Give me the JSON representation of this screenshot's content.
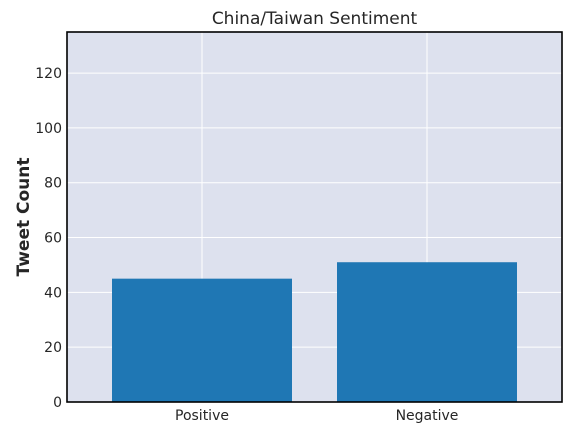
{
  "chart_data": {
    "type": "bar",
    "title": "China/Taiwan Sentiment",
    "xlabel": "",
    "ylabel": "Tweet Count",
    "categories": [
      "Positive",
      "Negative"
    ],
    "values": [
      45,
      51
    ],
    "ylim": [
      0,
      135
    ],
    "yticks": [
      0,
      20,
      40,
      60,
      80,
      100,
      120
    ],
    "grid": true,
    "legend": "none",
    "colors": {
      "bar": "#1f77b4",
      "plot_background": "#dde1ee",
      "grid": "#ffffff",
      "frame": "#000000"
    }
  }
}
